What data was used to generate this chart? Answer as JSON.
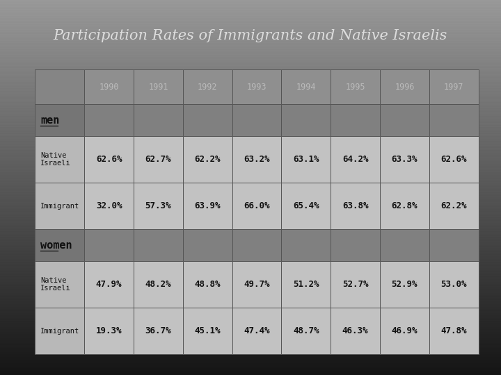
{
  "title": "Participation Rates of Immigrants and Native Israelis",
  "years": [
    "1990",
    "1991",
    "1992",
    "1993",
    "1994",
    "1995",
    "1996",
    "1997"
  ],
  "men_native": [
    "62.6%",
    "62.7%",
    "62.2%",
    "63.2%",
    "63.1%",
    "64.2%",
    "63.3%",
    "62.6%"
  ],
  "men_immigrant": [
    "32.0%",
    "57.3%",
    "63.9%",
    "66.0%",
    "65.4%",
    "63.8%",
    "62.8%",
    "62.2%"
  ],
  "women_native": [
    "47.9%",
    "48.2%",
    "48.8%",
    "49.7%",
    "51.2%",
    "52.7%",
    "52.9%",
    "53.0%"
  ],
  "women_immigrant": [
    "19.3%",
    "36.7%",
    "45.1%",
    "47.4%",
    "48.7%",
    "46.3%",
    "46.9%",
    "47.8%"
  ],
  "title_color": "#dddddd",
  "cell_text_color": "#111111",
  "year_text_color": "#bbbbbb"
}
